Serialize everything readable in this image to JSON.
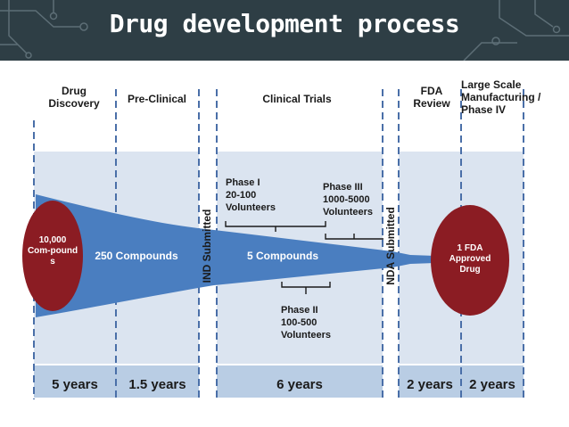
{
  "title": "Drug development process",
  "phases": [
    {
      "label": "Drug Discovery",
      "duration": "5 years"
    },
    {
      "label": "Pre-Clinical",
      "duration": "1.5 years"
    },
    {
      "label": "Clinical Trials",
      "duration": "6 years"
    },
    {
      "label": "FDA Review",
      "duration": "2 years"
    },
    {
      "label": "Large Scale Manufacturing / Phase IV",
      "duration": "2 years"
    }
  ],
  "milestones": {
    "ind": "IND Submitted",
    "nda": "NDA Submitted"
  },
  "funnel": {
    "start": "10,000 Com-pound s",
    "preclinical": "250 Compounds",
    "clinical": "5 Compounds",
    "end": "1 FDA Approved Drug"
  },
  "clinical_phases": [
    {
      "name": "Phase I",
      "detail": "20-100 Volunteers"
    },
    {
      "name": "Phase II",
      "detail": "100-500 Volunteers"
    },
    {
      "name": "Phase III",
      "detail": "1000-5000 Volunteers"
    }
  ],
  "colors": {
    "header_bg": "#2e3e45",
    "panel_bg": "#dbe4f0",
    "funnel": "#4a7ec0",
    "circle": "#8b1c23",
    "divider": "#4a6fa8"
  }
}
